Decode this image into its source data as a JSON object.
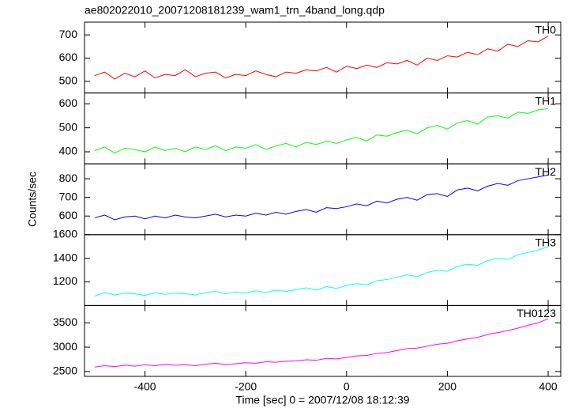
{
  "chart_data": [
    {
      "type": "line",
      "title": "ae802022010_20071208181239_wam1_trn_4band_long.qdp",
      "x": [
        -500,
        -480,
        -460,
        -440,
        -420,
        -400,
        -380,
        -360,
        -340,
        -320,
        -300,
        -280,
        -260,
        -240,
        -220,
        -200,
        -180,
        -160,
        -140,
        -120,
        -100,
        -80,
        -60,
        -40,
        -20,
        0,
        20,
        40,
        60,
        80,
        100,
        120,
        140,
        160,
        180,
        200,
        220,
        240,
        260,
        280,
        300,
        320,
        340,
        360,
        380,
        400
      ],
      "series": [
        {
          "name": "TH0",
          "color": "#ff0000",
          "values": [
            525,
            540,
            510,
            535,
            520,
            545,
            515,
            530,
            525,
            550,
            520,
            535,
            540,
            515,
            530,
            525,
            545,
            530,
            520,
            540,
            535,
            550,
            545,
            560,
            540,
            565,
            555,
            570,
            560,
            580,
            575,
            590,
            570,
            600,
            590,
            610,
            605,
            625,
            615,
            640,
            630,
            660,
            650,
            675,
            670,
            695
          ]
        }
      ],
      "xlim": [
        -520,
        425
      ],
      "xticks": [
        -400,
        -200,
        0,
        200,
        400
      ],
      "ylim": [
        450,
        755
      ],
      "yticks": [
        500,
        600,
        700
      ]
    },
    {
      "type": "line",
      "x": [
        -500,
        -480,
        -460,
        -440,
        -420,
        -400,
        -380,
        -360,
        -340,
        -320,
        -300,
        -280,
        -260,
        -240,
        -220,
        -200,
        -180,
        -160,
        -140,
        -120,
        -100,
        -80,
        -60,
        -40,
        -20,
        0,
        20,
        40,
        60,
        80,
        100,
        120,
        140,
        160,
        180,
        200,
        220,
        240,
        260,
        280,
        300,
        320,
        340,
        360,
        380,
        400
      ],
      "series": [
        {
          "name": "TH1",
          "color": "#00ff00",
          "values": [
            405,
            420,
            395,
            415,
            410,
            400,
            420,
            405,
            415,
            400,
            420,
            410,
            425,
            405,
            420,
            415,
            430,
            410,
            425,
            435,
            420,
            440,
            430,
            445,
            435,
            450,
            460,
            445,
            470,
            465,
            480,
            490,
            475,
            500,
            510,
            495,
            520,
            530,
            515,
            545,
            550,
            540,
            565,
            560,
            575,
            580
          ]
        }
      ],
      "xlim": [
        -520,
        425
      ],
      "xticks": [
        -400,
        -200,
        0,
        200,
        400
      ],
      "ylim": [
        350,
        645
      ],
      "yticks": [
        400,
        500,
        600
      ]
    },
    {
      "type": "line",
      "ylabel": "Counts/sec",
      "x": [
        -500,
        -480,
        -460,
        -440,
        -420,
        -400,
        -380,
        -360,
        -340,
        -320,
        -300,
        -280,
        -260,
        -240,
        -220,
        -200,
        -180,
        -160,
        -140,
        -120,
        -100,
        -80,
        -60,
        -40,
        -20,
        0,
        20,
        40,
        60,
        80,
        100,
        120,
        140,
        160,
        180,
        200,
        220,
        240,
        260,
        280,
        300,
        320,
        340,
        360,
        380,
        400
      ],
      "series": [
        {
          "name": "TH2",
          "color": "#0000ff",
          "values": [
            590,
            605,
            580,
            595,
            600,
            585,
            600,
            590,
            605,
            595,
            590,
            600,
            610,
            595,
            605,
            600,
            615,
            605,
            620,
            610,
            625,
            635,
            620,
            645,
            640,
            650,
            665,
            655,
            680,
            670,
            690,
            700,
            685,
            715,
            720,
            705,
            740,
            750,
            735,
            760,
            775,
            765,
            790,
            800,
            810,
            820
          ]
        }
      ],
      "xlim": [
        -520,
        425
      ],
      "xticks": [
        -400,
        -200,
        0,
        200,
        400
      ],
      "ylim": [
        500,
        880
      ],
      "yticks": [
        600,
        700,
        800
      ]
    },
    {
      "type": "line",
      "x": [
        -500,
        -480,
        -460,
        -440,
        -420,
        -400,
        -380,
        -360,
        -340,
        -320,
        -300,
        -280,
        -260,
        -240,
        -220,
        -200,
        -180,
        -160,
        -140,
        -120,
        -100,
        -80,
        -60,
        -40,
        -20,
        0,
        20,
        40,
        60,
        80,
        100,
        120,
        140,
        160,
        180,
        200,
        220,
        240,
        260,
        280,
        300,
        320,
        340,
        360,
        380,
        400
      ],
      "series": [
        {
          "name": "TH3",
          "color": "#00ffff",
          "values": [
            1080,
            1110,
            1090,
            1105,
            1100,
            1085,
            1110,
            1095,
            1105,
            1100,
            1090,
            1110,
            1120,
            1100,
            1115,
            1105,
            1125,
            1110,
            1130,
            1120,
            1135,
            1150,
            1130,
            1160,
            1145,
            1170,
            1185,
            1175,
            1210,
            1220,
            1240,
            1260,
            1245,
            1280,
            1300,
            1290,
            1330,
            1350,
            1340,
            1380,
            1400,
            1390,
            1430,
            1450,
            1470,
            1500
          ]
        }
      ],
      "xlim": [
        -520,
        425
      ],
      "xticks": [
        -400,
        -200,
        0,
        200,
        400
      ],
      "ylim": [
        1000,
        1600
      ],
      "yticks": [
        1200,
        1400,
        1600
      ]
    },
    {
      "type": "line",
      "xlabel": "Time [sec] 0 = 2007/12/08 18:12:39",
      "x": [
        -500,
        -480,
        -460,
        -440,
        -420,
        -400,
        -380,
        -360,
        -340,
        -320,
        -300,
        -280,
        -260,
        -240,
        -220,
        -200,
        -180,
        -160,
        -140,
        -120,
        -100,
        -80,
        -60,
        -40,
        -20,
        0,
        20,
        40,
        60,
        80,
        100,
        120,
        140,
        160,
        180,
        200,
        220,
        240,
        260,
        280,
        300,
        320,
        340,
        360,
        380,
        400
      ],
      "series": [
        {
          "name": "TH0123",
          "color": "#ff00ff",
          "values": [
            2590,
            2620,
            2600,
            2630,
            2610,
            2640,
            2620,
            2650,
            2630,
            2640,
            2620,
            2650,
            2670,
            2640,
            2660,
            2680,
            2670,
            2700,
            2690,
            2710,
            2720,
            2740,
            2730,
            2770,
            2760,
            2790,
            2820,
            2830,
            2870,
            2890,
            2930,
            2970,
            2980,
            3020,
            3060,
            3080,
            3130,
            3170,
            3200,
            3260,
            3300,
            3340,
            3390,
            3450,
            3500,
            3580
          ]
        }
      ],
      "xlim": [
        -520,
        425
      ],
      "xticks": [
        -400,
        -200,
        0,
        200,
        400
      ],
      "ylim": [
        2400,
        3855
      ],
      "yticks": [
        2500,
        3000,
        3500
      ]
    }
  ]
}
